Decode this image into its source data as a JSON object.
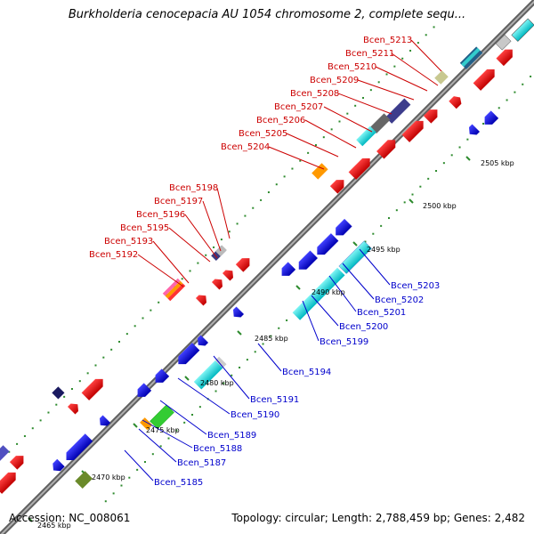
{
  "title": "Burkholderia cenocepacia AU 1054 chromosome 2, complete sequ...",
  "footer": {
    "accession": "Accession: NC_008061",
    "summary": "Topology: circular; Length: 2,788,459 bp; Genes: 2,482"
  },
  "scale_labels": [
    "2465 kbp",
    "2470 kbp",
    "2475 kbp",
    "2480 kbp",
    "2485 kbp",
    "2490 kbp",
    "2495 kbp",
    "2500 kbp",
    "2505 kbp"
  ],
  "forward_labels": [
    "Bcen_5192",
    "Bcen_5193",
    "Bcen_5195",
    "Bcen_5196",
    "Bcen_5197",
    "Bcen_5198",
    "Bcen_5204",
    "Bcen_5205",
    "Bcen_5206",
    "Bcen_5207",
    "Bcen_5208",
    "Bcen_5209",
    "Bcen_5210",
    "Bcen_5211",
    "Bcen_5213"
  ],
  "reverse_labels": [
    "Bcen_5185",
    "Bcen_5187",
    "Bcen_5188",
    "Bcen_5189",
    "Bcen_5190",
    "Bcen_5191",
    "Bcen_5194",
    "Bcen_5199",
    "Bcen_5200",
    "Bcen_5201",
    "Bcen_5202",
    "Bcen_5203"
  ],
  "colors": {
    "forward_label": "#cc0000",
    "reverse_label": "#0000cc",
    "backbone": "#808080",
    "tick": "#2e8b2e"
  }
}
